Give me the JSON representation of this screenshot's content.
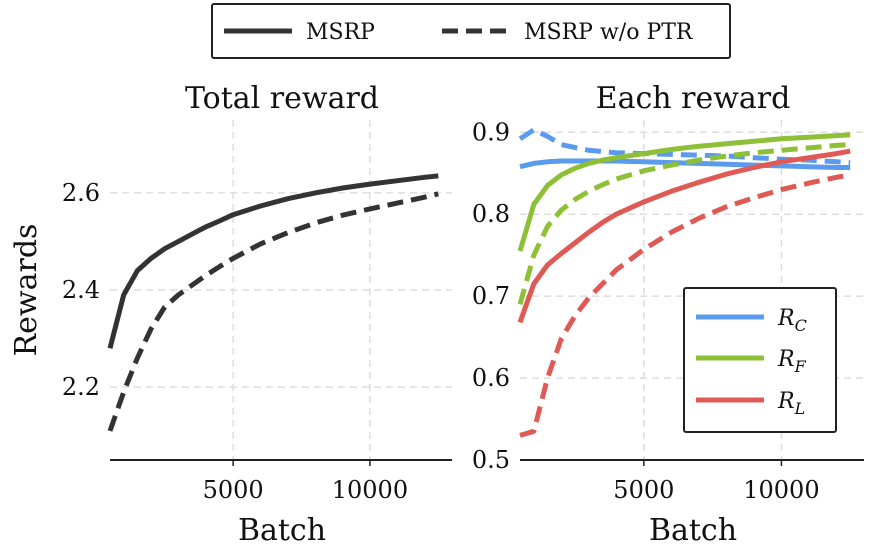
{
  "chart_data": [
    {
      "type": "line",
      "title": "Total reward",
      "xlabel": "Batch",
      "ylabel": "Rewards",
      "xlim": [
        500,
        13000
      ],
      "ylim": [
        2.05,
        2.75
      ],
      "xticks": [
        5000,
        10000
      ],
      "xtick_labels": [
        "5000",
        "10000"
      ],
      "yticks": [
        2.2,
        2.4,
        2.6
      ],
      "ytick_labels": [
        "2.2",
        "2.4",
        "2.6"
      ],
      "grid": true,
      "series": [
        {
          "name": "MSRP",
          "style": "solid",
          "color": "#333333",
          "x": [
            500,
            1000,
            1500,
            2000,
            2500,
            3000,
            3500,
            4000,
            4500,
            5000,
            6000,
            7000,
            8000,
            9000,
            10000,
            11000,
            12000,
            12500
          ],
          "y": [
            2.28,
            2.39,
            2.44,
            2.465,
            2.485,
            2.5,
            2.515,
            2.53,
            2.542,
            2.555,
            2.573,
            2.588,
            2.6,
            2.61,
            2.618,
            2.625,
            2.632,
            2.635
          ]
        },
        {
          "name": "MSRP w/o PTR",
          "style": "dashed",
          "color": "#333333",
          "x": [
            500,
            1000,
            1500,
            2000,
            2500,
            3000,
            3500,
            4000,
            4500,
            5000,
            6000,
            7000,
            8000,
            9000,
            10000,
            11000,
            12000,
            12500
          ],
          "y": [
            2.11,
            2.19,
            2.26,
            2.32,
            2.365,
            2.39,
            2.41,
            2.43,
            2.448,
            2.465,
            2.495,
            2.518,
            2.538,
            2.554,
            2.567,
            2.579,
            2.591,
            2.598
          ]
        }
      ]
    },
    {
      "type": "line",
      "title": "Each reward",
      "xlabel": "Batch",
      "ylabel": "",
      "xlim": [
        500,
        13000
      ],
      "ylim": [
        0.5,
        0.915
      ],
      "xticks": [
        5000,
        10000
      ],
      "xtick_labels": [
        "5000",
        "10000"
      ],
      "yticks": [
        0.5,
        0.6,
        0.7,
        0.8,
        0.9
      ],
      "ytick_labels": [
        "0.5",
        "0.6",
        "0.7",
        "0.8",
        "0.9"
      ],
      "grid": true,
      "legend_position": "lower-right",
      "series": [
        {
          "name": "R_C",
          "style": "solid",
          "color": "#5b9bef",
          "x": [
            500,
            1000,
            1500,
            2000,
            3000,
            4000,
            5000,
            6000,
            7000,
            8000,
            9000,
            10000,
            11000,
            12000,
            12500
          ],
          "y": [
            0.858,
            0.862,
            0.864,
            0.865,
            0.865,
            0.865,
            0.864,
            0.863,
            0.862,
            0.861,
            0.86,
            0.859,
            0.858,
            0.857,
            0.857
          ]
        },
        {
          "name": "R_C dashed",
          "style": "dashed",
          "color": "#5b9bef",
          "x": [
            500,
            1000,
            1500,
            2000,
            3000,
            4000,
            5000,
            6000,
            7000,
            8000,
            9000,
            10000,
            11000,
            12000,
            12500
          ],
          "y": [
            0.892,
            0.903,
            0.895,
            0.885,
            0.878,
            0.875,
            0.874,
            0.873,
            0.872,
            0.871,
            0.869,
            0.867,
            0.866,
            0.864,
            0.863
          ]
        },
        {
          "name": "R_F",
          "style": "solid",
          "color": "#8dc037",
          "x": [
            500,
            1000,
            1500,
            2000,
            2500,
            3000,
            3500,
            4000,
            5000,
            6000,
            7000,
            8000,
            9000,
            10000,
            11000,
            12000,
            12500
          ],
          "y": [
            0.755,
            0.812,
            0.835,
            0.848,
            0.856,
            0.862,
            0.866,
            0.869,
            0.874,
            0.879,
            0.883,
            0.886,
            0.889,
            0.892,
            0.894,
            0.896,
            0.897
          ]
        },
        {
          "name": "R_F dashed",
          "style": "dashed",
          "color": "#8dc037",
          "x": [
            500,
            1000,
            1500,
            2000,
            2500,
            3000,
            3500,
            4000,
            5000,
            6000,
            7000,
            8000,
            9000,
            10000,
            11000,
            12000,
            12500
          ],
          "y": [
            0.69,
            0.75,
            0.785,
            0.805,
            0.818,
            0.828,
            0.836,
            0.843,
            0.853,
            0.86,
            0.866,
            0.871,
            0.875,
            0.878,
            0.881,
            0.884,
            0.885
          ]
        },
        {
          "name": "R_L",
          "style": "solid",
          "color": "#e05a55",
          "x": [
            500,
            1000,
            1500,
            2000,
            2500,
            3000,
            3500,
            4000,
            5000,
            6000,
            7000,
            8000,
            9000,
            10000,
            11000,
            12000,
            12500
          ],
          "y": [
            0.668,
            0.715,
            0.738,
            0.752,
            0.765,
            0.778,
            0.79,
            0.8,
            0.815,
            0.828,
            0.839,
            0.849,
            0.857,
            0.864,
            0.869,
            0.874,
            0.877
          ]
        },
        {
          "name": "R_L dashed",
          "style": "dashed",
          "color": "#e05a55",
          "x": [
            500,
            1000,
            1500,
            2000,
            2500,
            3000,
            4000,
            5000,
            6000,
            7000,
            8000,
            9000,
            10000,
            11000,
            12000,
            12500
          ],
          "y": [
            0.53,
            0.535,
            0.6,
            0.648,
            0.676,
            0.698,
            0.732,
            0.757,
            0.778,
            0.795,
            0.809,
            0.82,
            0.83,
            0.838,
            0.845,
            0.848
          ]
        }
      ]
    }
  ],
  "top_legend": {
    "items": [
      {
        "label": "MSRP",
        "style": "solid"
      },
      {
        "label": "MSRP w/o PTR",
        "style": "dashed"
      }
    ]
  },
  "right_legend": {
    "items": [
      {
        "symbol": "R",
        "sub": "C",
        "color": "#5b9bef"
      },
      {
        "symbol": "R",
        "sub": "F",
        "color": "#8dc037"
      },
      {
        "symbol": "R",
        "sub": "L",
        "color": "#e05a55"
      }
    ]
  }
}
